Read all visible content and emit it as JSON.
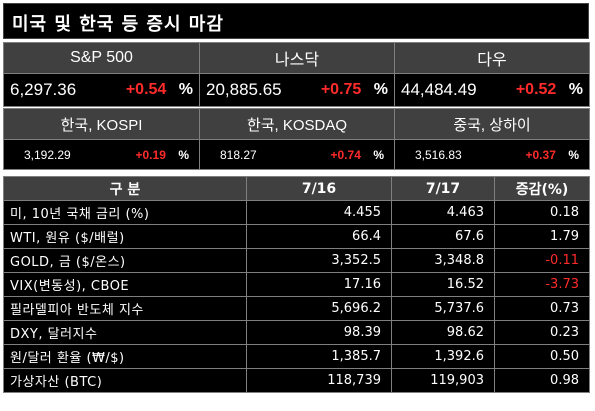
{
  "title": "미국 및 한국 등 증시 마감",
  "us_indices": [
    {
      "name": "S&P 500",
      "value": "6,297.36",
      "change": "+0.54",
      "unit": "%"
    },
    {
      "name": "나스닥",
      "value": "20,885.65",
      "change": "+0.75",
      "unit": "%"
    },
    {
      "name": "다우",
      "value": "44,484.49",
      "change": "+0.52",
      "unit": "%"
    }
  ],
  "asia_indices": [
    {
      "name": "한국, KOSPI",
      "value": "3,192.29",
      "change": "+0.19",
      "unit": "%"
    },
    {
      "name": "한국, KOSDAQ",
      "value": "818.27",
      "change": "+0.74",
      "unit": "%"
    },
    {
      "name": "중국, 상하이",
      "value": "3,516.83",
      "change": "+0.37",
      "unit": "%"
    }
  ],
  "table": {
    "headers": [
      "구 분",
      "7/16",
      "7/17",
      "증감(%)"
    ],
    "rows": [
      {
        "label": "미, 10년 국채 금리 (%)",
        "d1": "4.455",
        "d2": "4.463",
        "chg": "0.18",
        "neg": false
      },
      {
        "label": "WTI, 원유 ($/배럴)",
        "d1": "66.4",
        "d2": "67.6",
        "chg": "1.79",
        "neg": false
      },
      {
        "label": "GOLD, 금 ($/온스)",
        "d1": "3,352.5",
        "d2": "3,348.8",
        "chg": "-0.11",
        "neg": true
      },
      {
        "label": "VIX(변동성), CBOE",
        "d1": "17.16",
        "d2": "16.52",
        "chg": "-3.73",
        "neg": true
      },
      {
        "label": "필라델피아 반도체 지수",
        "d1": "5,696.2",
        "d2": "5,737.6",
        "chg": "0.73",
        "neg": false
      },
      {
        "label": "DXY, 달러지수",
        "d1": "98.39",
        "d2": "98.62",
        "chg": "0.23",
        "neg": false
      },
      {
        "label": "원/달러 환율 (₩/$)",
        "d1": "1,385.7",
        "d2": "1,392.6",
        "chg": "0.50",
        "neg": false
      },
      {
        "label": "가상자산 (BTC)",
        "d1": "118,739",
        "d2": "119,903",
        "chg": "0.98",
        "neg": false
      }
    ]
  },
  "colors": {
    "header_bg": "#404040",
    "value_bg": "#000000",
    "positive_change": "#ff2b2b",
    "negative_change": "#ff2b2b",
    "text": "#ffffff"
  }
}
